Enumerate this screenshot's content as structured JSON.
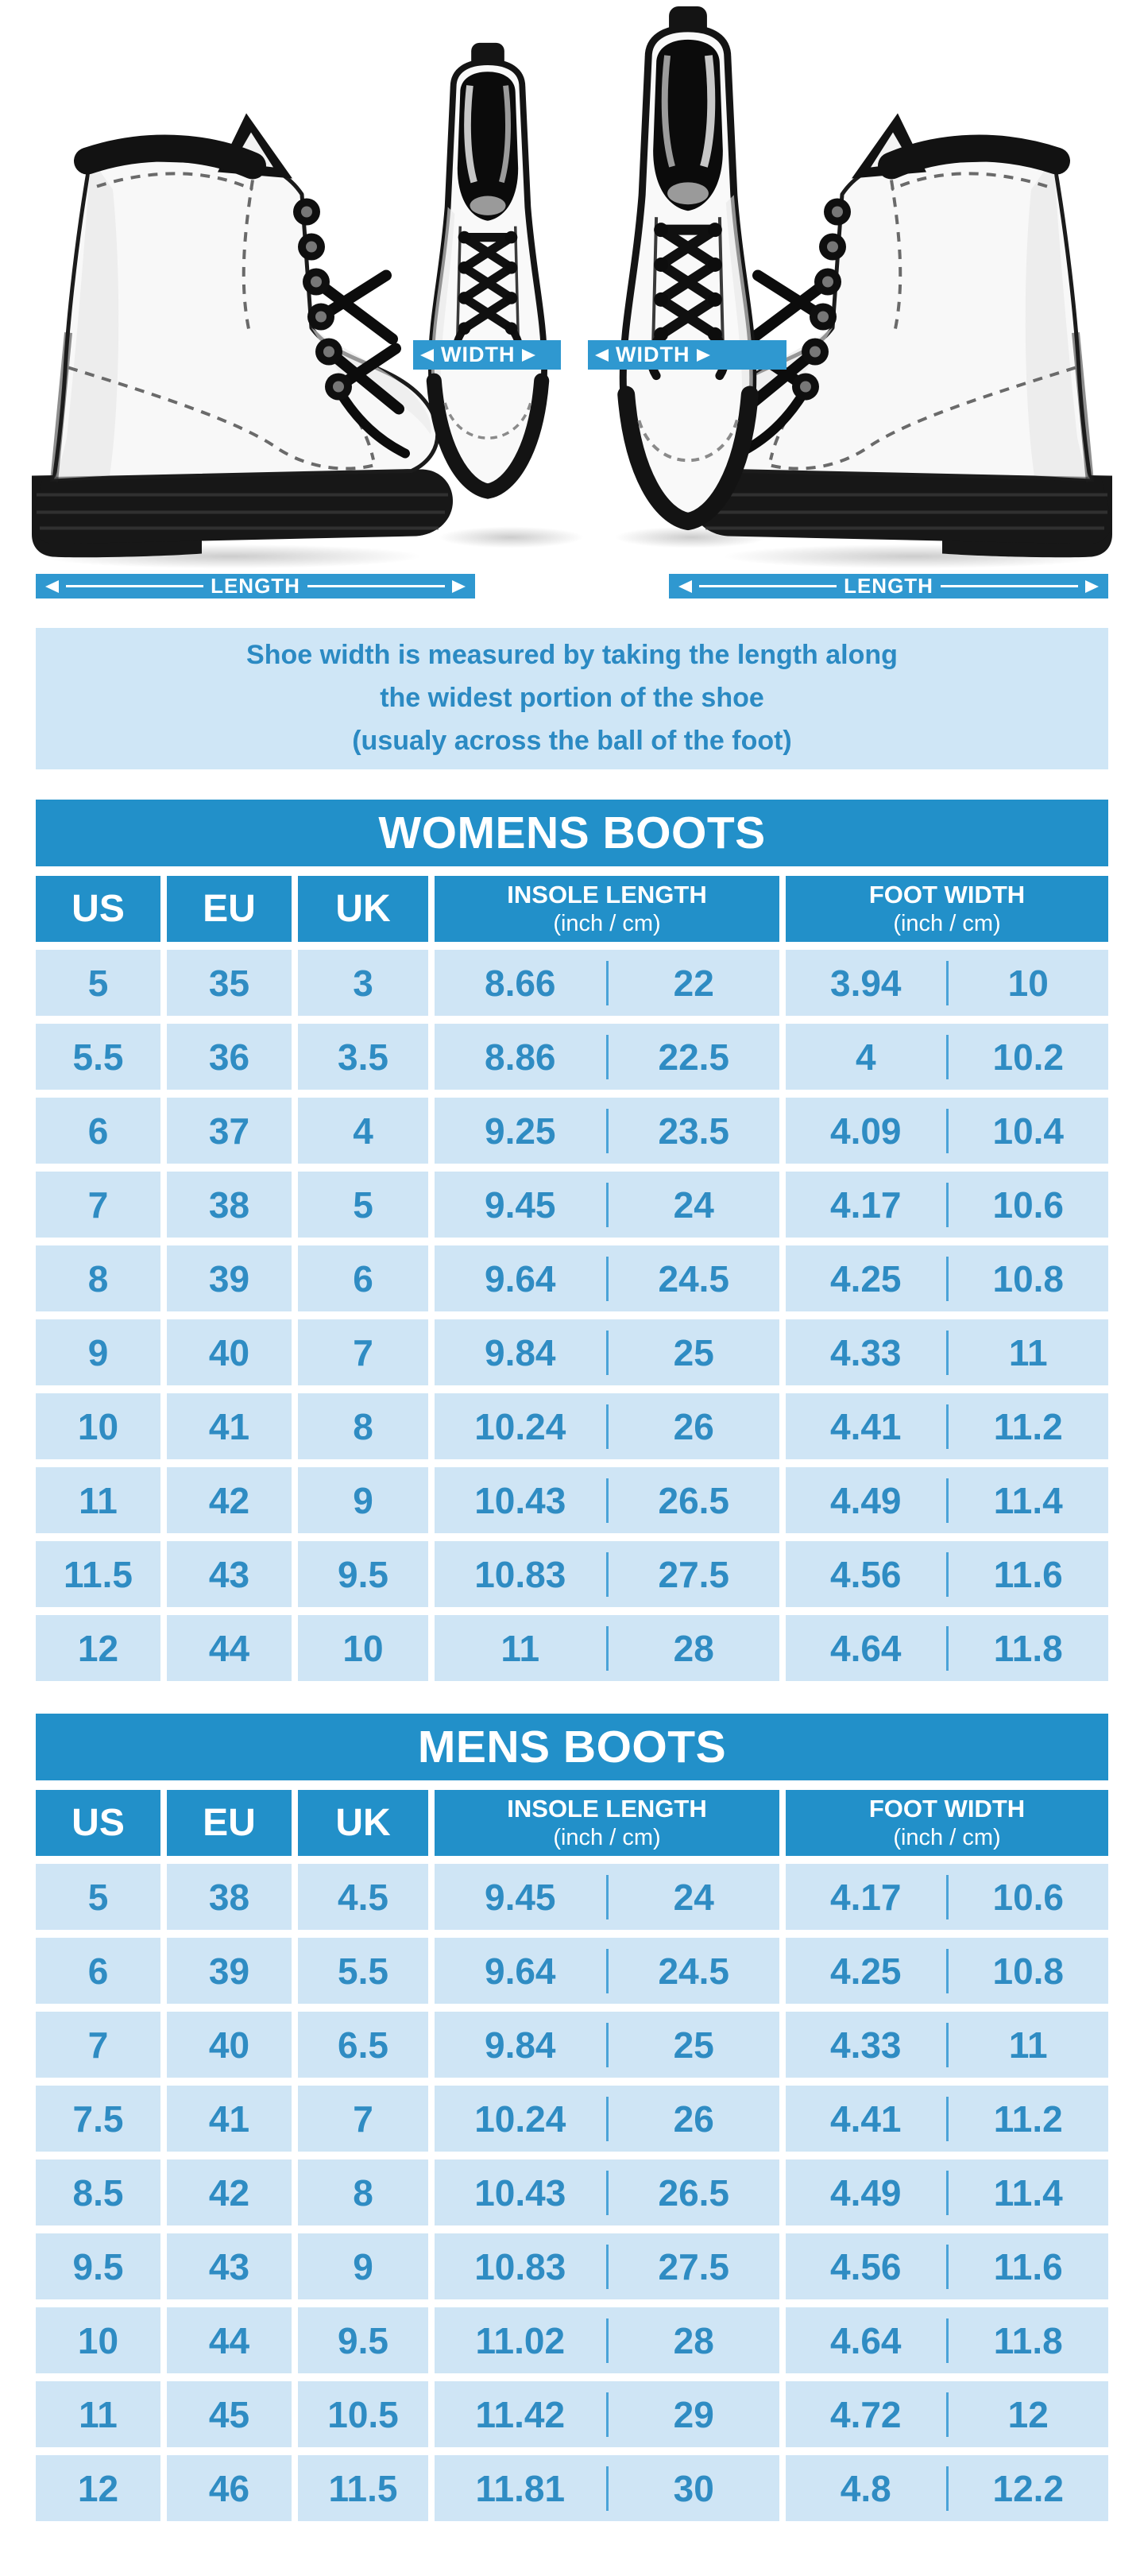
{
  "diagram": {
    "width_label": "WIDTH",
    "length_label": "LENGTH"
  },
  "note": {
    "lines": [
      "Shoe width is measured by taking the length along",
      "the widest portion of the shoe",
      "(usualy across the ball of the foot)"
    ]
  },
  "colors": {
    "accent": "#2290c9",
    "band": "#2f98d0",
    "cell_bg": "#cfe5f5",
    "cell_text": "#2f8cc3",
    "divider": "#4aa3d8",
    "note_bg": "#cfe6f6",
    "note_text": "#2b8ac3",
    "title_text": "#ffffff"
  },
  "tables": [
    {
      "title": "WOMENS BOOTS",
      "headers": {
        "us": "US",
        "eu": "EU",
        "uk": "UK",
        "insole_title": "INSOLE LENGTH",
        "insole_sub": "(inch / cm)",
        "width_title": "FOOT WIDTH",
        "width_sub": "(inch / cm)"
      },
      "rows": [
        {
          "us": "5",
          "eu": "35",
          "uk": "3",
          "insole_in": "8.66",
          "insole_cm": "22",
          "width_in": "3.94",
          "width_cm": "10"
        },
        {
          "us": "5.5",
          "eu": "36",
          "uk": "3.5",
          "insole_in": "8.86",
          "insole_cm": "22.5",
          "width_in": "4",
          "width_cm": "10.2"
        },
        {
          "us": "6",
          "eu": "37",
          "uk": "4",
          "insole_in": "9.25",
          "insole_cm": "23.5",
          "width_in": "4.09",
          "width_cm": "10.4"
        },
        {
          "us": "7",
          "eu": "38",
          "uk": "5",
          "insole_in": "9.45",
          "insole_cm": "24",
          "width_in": "4.17",
          "width_cm": "10.6"
        },
        {
          "us": "8",
          "eu": "39",
          "uk": "6",
          "insole_in": "9.64",
          "insole_cm": "24.5",
          "width_in": "4.25",
          "width_cm": "10.8"
        },
        {
          "us": "9",
          "eu": "40",
          "uk": "7",
          "insole_in": "9.84",
          "insole_cm": "25",
          "width_in": "4.33",
          "width_cm": "11"
        },
        {
          "us": "10",
          "eu": "41",
          "uk": "8",
          "insole_in": "10.24",
          "insole_cm": "26",
          "width_in": "4.41",
          "width_cm": "11.2"
        },
        {
          "us": "11",
          "eu": "42",
          "uk": "9",
          "insole_in": "10.43",
          "insole_cm": "26.5",
          "width_in": "4.49",
          "width_cm": "11.4"
        },
        {
          "us": "11.5",
          "eu": "43",
          "uk": "9.5",
          "insole_in": "10.83",
          "insole_cm": "27.5",
          "width_in": "4.56",
          "width_cm": "11.6"
        },
        {
          "us": "12",
          "eu": "44",
          "uk": "10",
          "insole_in": "11",
          "insole_cm": "28",
          "width_in": "4.64",
          "width_cm": "11.8"
        }
      ]
    },
    {
      "title": "MENS BOOTS",
      "headers": {
        "us": "US",
        "eu": "EU",
        "uk": "UK",
        "insole_title": "INSOLE LENGTH",
        "insole_sub": "(inch / cm)",
        "width_title": "FOOT WIDTH",
        "width_sub": "(inch / cm)"
      },
      "rows": [
        {
          "us": "5",
          "eu": "38",
          "uk": "4.5",
          "insole_in": "9.45",
          "insole_cm": "24",
          "width_in": "4.17",
          "width_cm": "10.6"
        },
        {
          "us": "6",
          "eu": "39",
          "uk": "5.5",
          "insole_in": "9.64",
          "insole_cm": "24.5",
          "width_in": "4.25",
          "width_cm": "10.8"
        },
        {
          "us": "7",
          "eu": "40",
          "uk": "6.5",
          "insole_in": "9.84",
          "insole_cm": "25",
          "width_in": "4.33",
          "width_cm": "11"
        },
        {
          "us": "7.5",
          "eu": "41",
          "uk": "7",
          "insole_in": "10.24",
          "insole_cm": "26",
          "width_in": "4.41",
          "width_cm": "11.2"
        },
        {
          "us": "8.5",
          "eu": "42",
          "uk": "8",
          "insole_in": "10.43",
          "insole_cm": "26.5",
          "width_in": "4.49",
          "width_cm": "11.4"
        },
        {
          "us": "9.5",
          "eu": "43",
          "uk": "9",
          "insole_in": "10.83",
          "insole_cm": "27.5",
          "width_in": "4.56",
          "width_cm": "11.6"
        },
        {
          "us": "10",
          "eu": "44",
          "uk": "9.5",
          "insole_in": "11.02",
          "insole_cm": "28",
          "width_in": "4.64",
          "width_cm": "11.8"
        },
        {
          "us": "11",
          "eu": "45",
          "uk": "10.5",
          "insole_in": "11.42",
          "insole_cm": "29",
          "width_in": "4.72",
          "width_cm": "12"
        },
        {
          "us": "12",
          "eu": "46",
          "uk": "11.5",
          "insole_in": "11.81",
          "insole_cm": "30",
          "width_in": "4.8",
          "width_cm": "12.2"
        }
      ]
    }
  ]
}
